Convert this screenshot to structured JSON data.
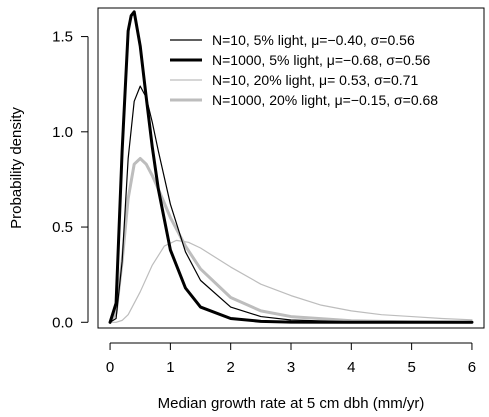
{
  "chart_data": {
    "type": "line",
    "title": "",
    "xlabel": "Median growth rate at 5 cm dbh (mm/yr)",
    "ylabel": "Probability density",
    "xlim": [
      -0.2,
      6.2
    ],
    "ylim": [
      -0.03,
      1.65
    ],
    "xticks": [
      0,
      1,
      2,
      3,
      4,
      5,
      6
    ],
    "xtick_labels": [
      "0",
      "1",
      "2",
      "3",
      "4",
      "5",
      "6"
    ],
    "yticks": [
      0.0,
      0.5,
      1.0,
      1.5
    ],
    "ytick_labels": [
      "0.0",
      "0.5",
      "1.0",
      "1.5"
    ],
    "grid": false,
    "legend_position": "top-right",
    "series": [
      {
        "name": "N=10,      5% light, μ=−0.40, σ=0.56",
        "distribution": "lognormal",
        "mu": -0.4,
        "sigma": 0.56,
        "color": "#000000",
        "weight": "thin",
        "x": [
          0.0,
          0.1,
          0.2,
          0.3,
          0.4,
          0.5,
          0.6,
          0.7,
          0.8,
          1.0,
          1.25,
          1.5,
          2.0,
          2.5,
          3.0,
          4.0,
          5.0,
          6.0
        ],
        "values": [
          0.0,
          0.02,
          0.32,
          0.86,
          1.16,
          1.24,
          1.18,
          1.05,
          0.9,
          0.62,
          0.37,
          0.22,
          0.08,
          0.03,
          0.012,
          0.002,
          0.0,
          0.0
        ]
      },
      {
        "name": "N=1000,  5% light, μ=−0.68, σ=0.56",
        "distribution": "lognormal",
        "mu": -0.68,
        "sigma": 0.56,
        "color": "#000000",
        "weight": "thick",
        "x": [
          0.0,
          0.1,
          0.2,
          0.3,
          0.35,
          0.4,
          0.5,
          0.6,
          0.7,
          0.8,
          1.0,
          1.25,
          1.5,
          2.0,
          2.5,
          3.0,
          4.0,
          5.0,
          6.0
        ],
        "values": [
          0.0,
          0.1,
          0.9,
          1.53,
          1.61,
          1.63,
          1.45,
          1.18,
          0.92,
          0.7,
          0.38,
          0.18,
          0.08,
          0.02,
          0.005,
          0.001,
          0.0,
          0.0,
          0.0
        ]
      },
      {
        "name": "N=10,    20% light, μ=  0.53, σ=0.71",
        "distribution": "lognormal",
        "mu": 0.53,
        "sigma": 0.71,
        "color": "#bdbdbd",
        "weight": "thin",
        "x": [
          0.0,
          0.1,
          0.2,
          0.3,
          0.5,
          0.7,
          0.9,
          1.1,
          1.3,
          1.5,
          2.0,
          2.5,
          3.0,
          3.5,
          4.0,
          4.5,
          5.0,
          5.5,
          6.0
        ],
        "values": [
          0.0,
          0.0,
          0.01,
          0.04,
          0.16,
          0.3,
          0.4,
          0.43,
          0.42,
          0.39,
          0.29,
          0.2,
          0.14,
          0.09,
          0.06,
          0.04,
          0.03,
          0.02,
          0.013
        ]
      },
      {
        "name": "N=1000, 20% light, μ=−0.15, σ=0.68",
        "distribution": "lognormal",
        "mu": -0.15,
        "sigma": 0.68,
        "color": "#bdbdbd",
        "weight": "thick",
        "x": [
          0.0,
          0.1,
          0.2,
          0.3,
          0.4,
          0.5,
          0.6,
          0.7,
          0.8,
          1.0,
          1.25,
          1.5,
          2.0,
          2.5,
          3.0,
          4.0,
          5.0,
          6.0
        ],
        "values": [
          0.0,
          0.05,
          0.32,
          0.65,
          0.83,
          0.86,
          0.83,
          0.77,
          0.7,
          0.55,
          0.4,
          0.28,
          0.13,
          0.06,
          0.03,
          0.008,
          0.002,
          0.0
        ]
      }
    ]
  }
}
